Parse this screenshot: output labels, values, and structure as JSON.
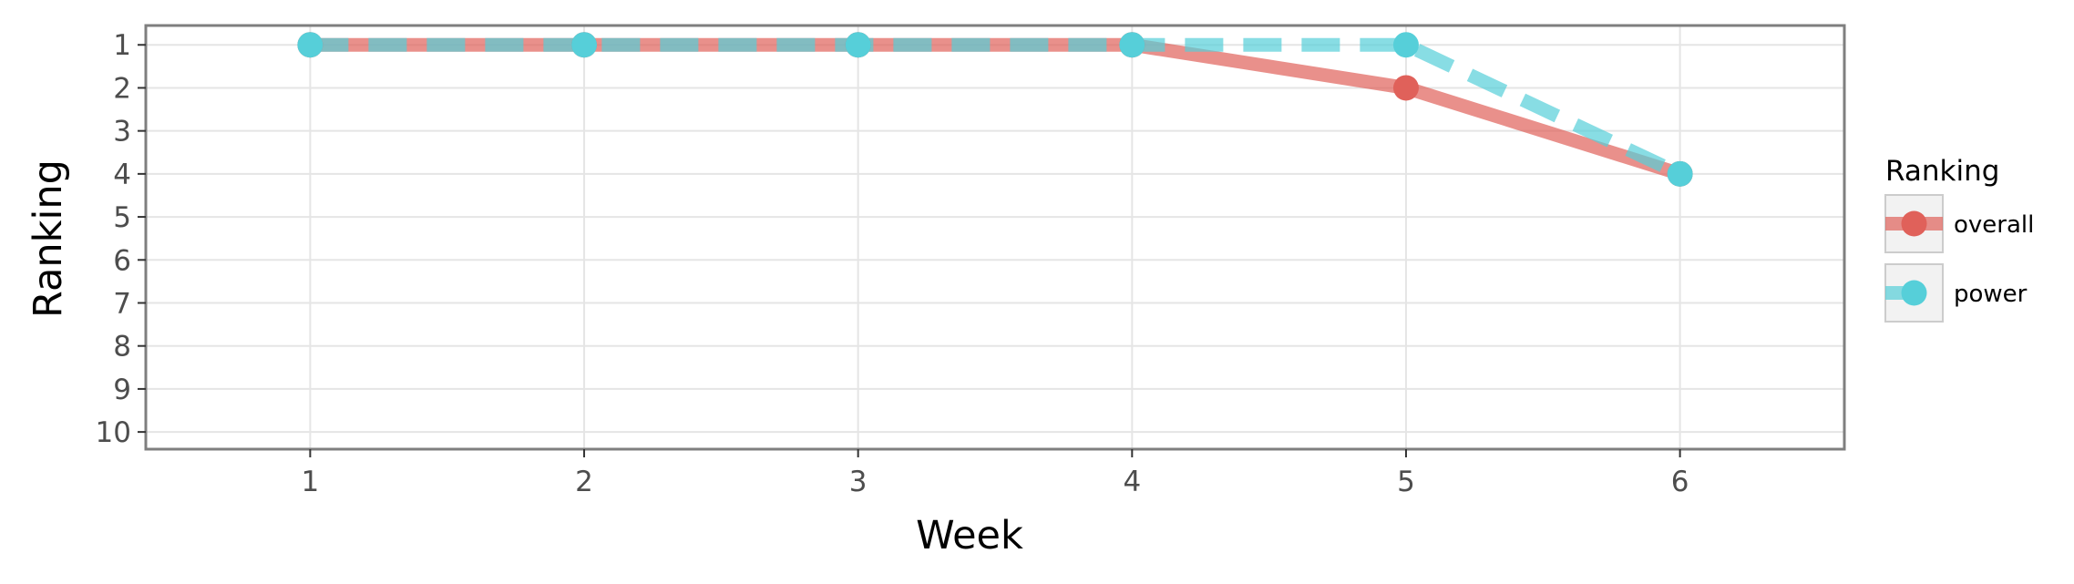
{
  "chart_data": {
    "type": "line",
    "title": "",
    "xlabel": "Week",
    "ylabel": "Ranking",
    "x": [
      1,
      2,
      3,
      4,
      5,
      6
    ],
    "x_ticks": [
      "1",
      "2",
      "3",
      "4",
      "5",
      "6"
    ],
    "xlim": [
      0.4,
      6.6
    ],
    "y_ticks": [
      "1",
      "2",
      "3",
      "4",
      "5",
      "6",
      "7",
      "8",
      "9",
      "10"
    ],
    "ylim": [
      10.4,
      0.55
    ],
    "y_reversed": true,
    "grid": true,
    "legend_title": "Ranking",
    "legend_position": "right",
    "series": [
      {
        "name": "overall",
        "values": [
          1,
          1,
          1,
          1,
          2,
          4
        ],
        "color": "#e0615a",
        "line_style": "solid"
      },
      {
        "name": "power",
        "values": [
          1,
          1,
          1,
          1,
          1,
          4
        ],
        "color": "#56cfd9",
        "line_style": "dashed"
      }
    ]
  }
}
